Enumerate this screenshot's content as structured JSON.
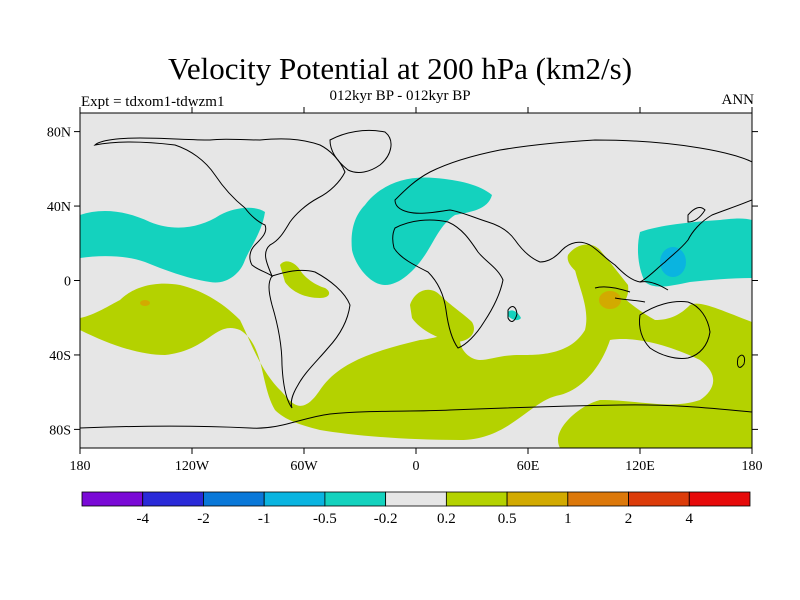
{
  "title": "Velocity Potential at 200 hPa (km2/s)",
  "subtitle": "012kyr BP - 012kyr BP",
  "left_label": "Expt = tdxom1-tdwzm1",
  "right_label": "ANN",
  "map": {
    "projection": "cylindrical-equidistant",
    "lon_range": [
      -180,
      180
    ],
    "lat_range": [
      -90,
      90
    ],
    "lat_ticks": [
      {
        "value": 80,
        "label": "80N"
      },
      {
        "value": 40,
        "label": "40N"
      },
      {
        "value": 0,
        "label": "0"
      },
      {
        "value": -40,
        "label": "40S"
      },
      {
        "value": -80,
        "label": "80S"
      }
    ],
    "lon_ticks": [
      {
        "value": -180,
        "label": "180"
      },
      {
        "value": -120,
        "label": "120W"
      },
      {
        "value": -60,
        "label": "60W"
      },
      {
        "value": 0,
        "label": "0"
      },
      {
        "value": 60,
        "label": "60E"
      },
      {
        "value": 120,
        "label": "120E"
      },
      {
        "value": 180,
        "label": "180"
      }
    ],
    "background_color": "#e6e6e6",
    "coastline_color": "#000000"
  },
  "colorbar": {
    "colors": [
      "#7a0ad6",
      "#2a2ad8",
      "#0a78d8",
      "#0ab4e0",
      "#14d2be",
      "#e6e6e6",
      "#b4d200",
      "#d2aa00",
      "#dc780a",
      "#dc3c0a",
      "#e60a0a"
    ],
    "labels": [
      "-4",
      "-2",
      "-1",
      "-0.5",
      "-0.2",
      "0.2",
      "0.5",
      "1",
      "2",
      "4"
    ]
  },
  "fields": [
    {
      "name": "north-pacific-negative",
      "level": "-0.5 to -0.2",
      "color": "#14d2be"
    },
    {
      "name": "europe-atlantic-negative",
      "level": "-0.5 to -0.2",
      "color": "#14d2be"
    },
    {
      "name": "west-pacific-negative",
      "level": "-0.5 to -0.2",
      "color": "#14d2be"
    },
    {
      "name": "west-pacific-core",
      "level": "-1 to -0.5",
      "color": "#0ab4e0"
    },
    {
      "name": "southern-positive",
      "level": "0.2 to 0.5",
      "color": "#b4d200"
    },
    {
      "name": "maritime-positive-core",
      "level": "0.5 to 1",
      "color": "#d2aa00"
    }
  ]
}
